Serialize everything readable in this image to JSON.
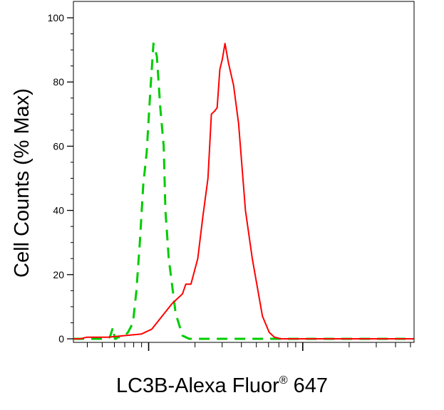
{
  "chart_data": {
    "type": "line",
    "title": "",
    "ylabel": "Cell Counts (% Max)",
    "xlabel": {
      "prefix": "LC3B-Alexa Fluor",
      "registered_mark": "®",
      "suffix": " 647"
    },
    "ylim": [
      0,
      100
    ],
    "yticks": [
      "0",
      "20",
      "40",
      "60",
      "80",
      "100"
    ],
    "xscale": "log",
    "xlim": [
      0,
      1
    ],
    "grid": false,
    "legend": "none",
    "series": [
      {
        "color": "#00cc00",
        "style": "dashed",
        "x": [
          0.0,
          0.05,
          0.1,
          0.107,
          0.11,
          0.113,
          0.116,
          0.118,
          0.12,
          0.121,
          0.122,
          0.125,
          0.13,
          0.14,
          0.15,
          0.155,
          0.16,
          0.165,
          0.17,
          0.175,
          0.18,
          0.185,
          0.195,
          0.205,
          0.215,
          0.225,
          0.235,
          0.245,
          0.255,
          0.265,
          0.27,
          0.28,
          0.3,
          0.32,
          0.34,
          1.0
        ],
        "y": [
          0.0,
          0.0,
          0.0,
          0.5,
          1.5,
          2.5,
          3.5,
          2.5,
          1.0,
          0.5,
          0.0,
          0.0,
          0.5,
          0.5,
          1.0,
          1.5,
          2.0,
          3.0,
          4.0,
          5.0,
          10.0,
          15.0,
          30.0,
          48.0,
          58.0,
          76.0,
          92.0,
          88.0,
          72.0,
          60.0,
          40.0,
          25.0,
          8.0,
          1.0,
          0.0,
          0.0
        ]
      },
      {
        "color": "#ff0000",
        "style": "solid",
        "x": [
          0.0,
          0.02,
          0.04,
          0.05,
          0.07,
          0.1,
          0.15,
          0.2,
          0.23,
          0.26,
          0.29,
          0.32,
          0.33,
          0.345,
          0.35,
          0.365,
          0.38,
          0.395,
          0.405,
          0.415,
          0.422,
          0.43,
          0.437,
          0.445,
          0.455,
          0.47,
          0.485,
          0.505,
          0.525,
          0.555,
          0.575,
          0.59,
          0.61,
          1.0
        ],
        "y": [
          0.0,
          0.0,
          0.5,
          0.5,
          0.5,
          0.5,
          1.0,
          1.5,
          3.0,
          7.0,
          11.0,
          14.0,
          17.0,
          17.0,
          19.0,
          25.0,
          38.0,
          50.0,
          70.0,
          71.0,
          72.0,
          84.0,
          87.0,
          92.0,
          86.0,
          79.0,
          67.0,
          40.0,
          25.0,
          7.0,
          2.0,
          0.5,
          0.0,
          0.0
        ]
      }
    ]
  }
}
